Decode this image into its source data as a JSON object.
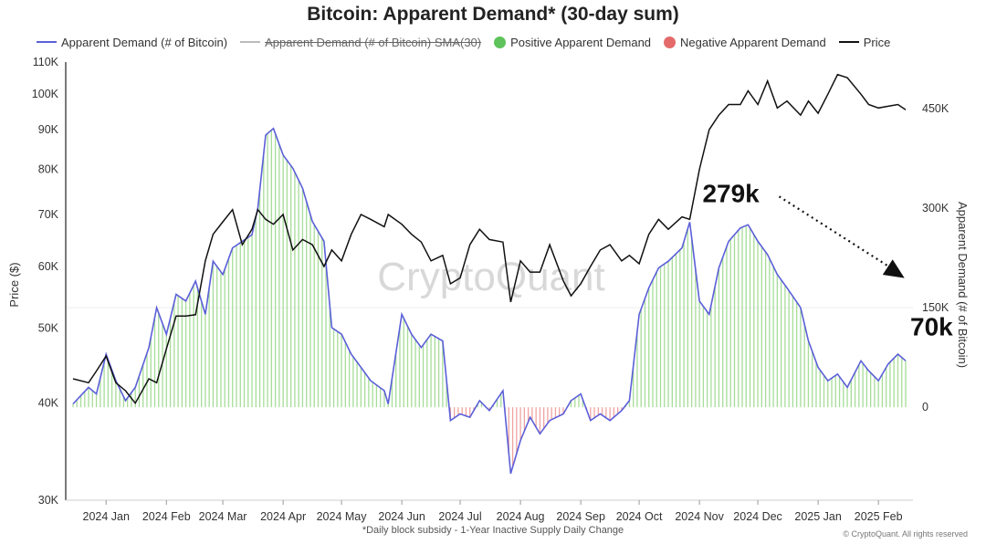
{
  "chart_data": {
    "type": "bar",
    "title": "Bitcoin: Apparent Demand* (30-day sum)",
    "footnote": "*Daily block subsidy - 1-Year Inactive Supply Daily Change",
    "source": "© CryptoQuant. All rights reserved",
    "watermark": "CryptoQuant",
    "legend": [
      {
        "label": "Apparent Demand (# of Bitcoin)",
        "kind": "line",
        "color": "#5b5fd8"
      },
      {
        "label": "Apparent Demand (# of Bitcoin)  SMA(30)",
        "kind": "line",
        "color": "#bbbbbb",
        "strikethrough": true
      },
      {
        "label": "Positive Apparent Demand",
        "kind": "dot",
        "color": "#5ec35a"
      },
      {
        "label": "Negative Apparent Demand",
        "kind": "dot",
        "color": "#e46a6a"
      },
      {
        "label": "Price",
        "kind": "line",
        "color": "#111111"
      }
    ],
    "legend_placement": "top",
    "x_ticks": [
      "2024 Jan",
      "2024 Feb",
      "2024 Mar",
      "2024 Apr",
      "2024 May",
      "2024 Jun",
      "2024 Jul",
      "2024 Aug",
      "2024 Sep",
      "2024 Oct",
      "2024 Nov",
      "2024 Dec",
      "2025 Jan",
      "2025 Feb"
    ],
    "x_range": [
      "2023-12-24",
      "2025-02-24"
    ],
    "left_axis": {
      "label": "Price ($)",
      "scale": "log",
      "ticks": [
        30000,
        40000,
        50000,
        60000,
        70000,
        80000,
        90000,
        100000,
        110000
      ],
      "tick_labels": [
        "30K",
        "40K",
        "50K",
        "60K",
        "70K",
        "80K",
        "90K",
        "100K",
        "110K"
      ],
      "range": [
        30000,
        110000
      ]
    },
    "right_axis": {
      "label": "Apparent Demand (# of Bitcoin)",
      "scale": "linear",
      "ticks": [
        0,
        150000,
        300000,
        450000
      ],
      "tick_labels": [
        "0",
        "150K",
        "300K",
        "450K"
      ],
      "range": [
        -140000,
        520000
      ]
    },
    "annotations": [
      {
        "text": "279k",
        "value": 279000,
        "date": "2024-11-05"
      },
      {
        "text": "70k",
        "value": 70000,
        "date": "2025-02-24"
      }
    ],
    "demand_series": {
      "name": "Apparent Demand (# of Bitcoin)",
      "dates": [
        "2023-12-24",
        "2024-01-01",
        "2024-01-05",
        "2024-01-10",
        "2024-01-15",
        "2024-01-20",
        "2024-01-25",
        "2024-02-01",
        "2024-02-05",
        "2024-02-10",
        "2024-02-15",
        "2024-02-20",
        "2024-02-25",
        "2024-03-01",
        "2024-03-05",
        "2024-03-10",
        "2024-03-15",
        "2024-03-20",
        "2024-03-25",
        "2024-03-28",
        "2024-04-01",
        "2024-04-05",
        "2024-04-10",
        "2024-04-15",
        "2024-04-20",
        "2024-04-25",
        "2024-05-01",
        "2024-05-05",
        "2024-05-10",
        "2024-05-15",
        "2024-05-20",
        "2024-05-25",
        "2024-06-01",
        "2024-06-03",
        "2024-06-10",
        "2024-06-15",
        "2024-06-20",
        "2024-06-25",
        "2024-07-01",
        "2024-07-05",
        "2024-07-10",
        "2024-07-15",
        "2024-07-20",
        "2024-07-25",
        "2024-08-01",
        "2024-08-05",
        "2024-08-10",
        "2024-08-15",
        "2024-08-20",
        "2024-08-25",
        "2024-09-01",
        "2024-09-05",
        "2024-09-10",
        "2024-09-15",
        "2024-09-20",
        "2024-09-25",
        "2024-10-01",
        "2024-10-05",
        "2024-10-10",
        "2024-10-15",
        "2024-10-20",
        "2024-10-25",
        "2024-11-01",
        "2024-11-05",
        "2024-11-10",
        "2024-11-15",
        "2024-11-20",
        "2024-11-25",
        "2024-12-01",
        "2024-12-05",
        "2024-12-10",
        "2024-12-15",
        "2024-12-20",
        "2024-12-25",
        "2025-01-01",
        "2025-01-05",
        "2025-01-10",
        "2025-01-15",
        "2025-01-20",
        "2025-01-25",
        "2025-02-01",
        "2025-02-05",
        "2025-02-10",
        "2025-02-15",
        "2025-02-20",
        "2025-02-24"
      ],
      "values": [
        5000,
        30000,
        20000,
        80000,
        40000,
        10000,
        30000,
        90000,
        150000,
        110000,
        170000,
        160000,
        190000,
        140000,
        220000,
        200000,
        240000,
        250000,
        260000,
        300000,
        410000,
        420000,
        380000,
        360000,
        330000,
        280000,
        250000,
        120000,
        110000,
        80000,
        60000,
        40000,
        25000,
        5000,
        140000,
        110000,
        90000,
        110000,
        100000,
        -20000,
        -10000,
        -15000,
        10000,
        -5000,
        25000,
        -100000,
        -50000,
        -15000,
        -40000,
        -20000,
        -10000,
        10000,
        20000,
        -20000,
        -10000,
        -20000,
        -5000,
        10000,
        140000,
        180000,
        210000,
        220000,
        240000,
        279000,
        160000,
        140000,
        210000,
        250000,
        270000,
        275000,
        250000,
        230000,
        200000,
        180000,
        150000,
        100000,
        60000,
        40000,
        50000,
        30000,
        70000,
        55000,
        40000,
        65000,
        80000,
        70000
      ]
    },
    "price_series": {
      "name": "Price",
      "dates": [
        "2023-12-24",
        "2024-01-01",
        "2024-01-05",
        "2024-01-10",
        "2024-01-15",
        "2024-01-20",
        "2024-01-25",
        "2024-02-01",
        "2024-02-05",
        "2024-02-10",
        "2024-02-15",
        "2024-02-20",
        "2024-02-25",
        "2024-03-01",
        "2024-03-05",
        "2024-03-10",
        "2024-03-15",
        "2024-03-20",
        "2024-03-25",
        "2024-03-28",
        "2024-04-01",
        "2024-04-05",
        "2024-04-10",
        "2024-04-15",
        "2024-04-20",
        "2024-04-25",
        "2024-05-01",
        "2024-05-05",
        "2024-05-10",
        "2024-05-15",
        "2024-05-20",
        "2024-05-25",
        "2024-06-01",
        "2024-06-03",
        "2024-06-10",
        "2024-06-15",
        "2024-06-20",
        "2024-06-25",
        "2024-07-01",
        "2024-07-05",
        "2024-07-10",
        "2024-07-15",
        "2024-07-20",
        "2024-07-25",
        "2024-08-01",
        "2024-08-05",
        "2024-08-10",
        "2024-08-15",
        "2024-08-20",
        "2024-08-25",
        "2024-09-01",
        "2024-09-05",
        "2024-09-10",
        "2024-09-15",
        "2024-09-20",
        "2024-09-25",
        "2024-10-01",
        "2024-10-05",
        "2024-10-10",
        "2024-10-15",
        "2024-10-20",
        "2024-10-25",
        "2024-11-01",
        "2024-11-05",
        "2024-11-10",
        "2024-11-15",
        "2024-11-20",
        "2024-11-25",
        "2024-12-01",
        "2024-12-05",
        "2024-12-10",
        "2024-12-15",
        "2024-12-20",
        "2024-12-25",
        "2025-01-01",
        "2025-01-05",
        "2025-01-10",
        "2025-01-15",
        "2025-01-20",
        "2025-01-25",
        "2025-02-01",
        "2025-02-05",
        "2025-02-10",
        "2025-02-15",
        "2025-02-20",
        "2025-02-24"
      ],
      "values": [
        43000,
        42500,
        44000,
        46000,
        42500,
        41500,
        40000,
        43000,
        42500,
        47000,
        51800,
        51800,
        52000,
        61000,
        66000,
        68500,
        71000,
        64000,
        67000,
        71000,
        69000,
        68000,
        70000,
        63000,
        65000,
        64000,
        60000,
        63000,
        61000,
        66000,
        70000,
        69000,
        67500,
        70000,
        68000,
        66000,
        64500,
        61000,
        62000,
        57000,
        58000,
        64000,
        67000,
        65000,
        64500,
        54000,
        61000,
        59000,
        59000,
        64000,
        57500,
        55000,
        57000,
        60000,
        63000,
        64000,
        61000,
        62000,
        60500,
        66000,
        69000,
        67000,
        69500,
        69000,
        80000,
        90000,
        94000,
        97000,
        97000,
        101000,
        97000,
        104000,
        96000,
        98000,
        94000,
        98000,
        94500,
        100000,
        106000,
        105000,
        100000,
        97000,
        96000,
        96500,
        97000,
        95500
      ]
    }
  }
}
